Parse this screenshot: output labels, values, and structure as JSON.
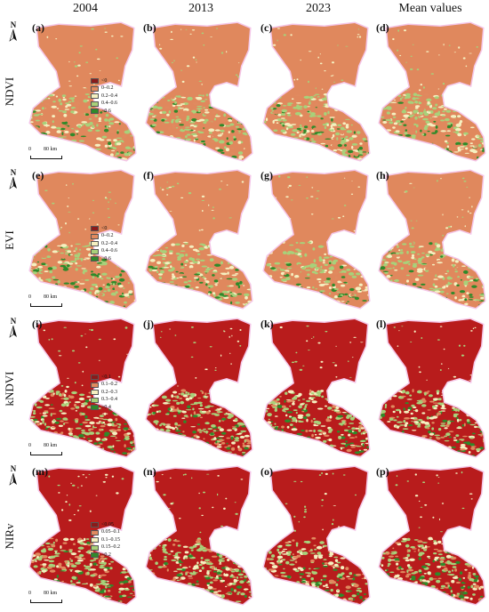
{
  "columns": [
    "2004",
    "2013",
    "2023",
    "Mean values"
  ],
  "north_label": "N",
  "scale": {
    "zero": "0",
    "distance": "80 km"
  },
  "rows": [
    {
      "index": "NDVI",
      "tags": [
        "(a)",
        "(b)",
        "(c)",
        "(d)"
      ],
      "legend": [
        {
          "label": "<0",
          "color": "#8b1a1a"
        },
        {
          "label": "0–0.2",
          "color": "#e08a5f"
        },
        {
          "label": "0.2–0.4",
          "color": "#f5f0c0"
        },
        {
          "label": "0.4–0.6",
          "color": "#a8d17a"
        },
        {
          "label": ">0.6",
          "color": "#2f8a2a"
        }
      ],
      "base_color": "#e0885d"
    },
    {
      "index": "EVI",
      "tags": [
        "(e)",
        "(f)",
        "(g)",
        "(h)"
      ],
      "legend": [
        {
          "label": "<0",
          "color": "#8b1a1a"
        },
        {
          "label": "0–0.2",
          "color": "#e08a5f"
        },
        {
          "label": "0.2–0.4",
          "color": "#f5f0c0"
        },
        {
          "label": "0.4–0.6",
          "color": "#a8d17a"
        },
        {
          "label": ">0.6",
          "color": "#2f8a2a"
        }
      ],
      "base_color": "#e0885d"
    },
    {
      "index": "kNDVI",
      "tags": [
        "(i)",
        "(j)",
        "(k)",
        "(l)"
      ],
      "legend": [
        {
          "label": "<0.1",
          "color": "#8b1a1a"
        },
        {
          "label": "0.1–0.2",
          "color": "#e08a5f"
        },
        {
          "label": "0.2–0.3",
          "color": "#f5f0c0"
        },
        {
          "label": "0.3–0.4",
          "color": "#a8d17a"
        },
        {
          "label": ">0.4",
          "color": "#2f8a2a"
        }
      ],
      "base_color": "#b81c1c"
    },
    {
      "index": "NIRv",
      "tags": [
        "(m)",
        "(n)",
        "(o)",
        "(p)"
      ],
      "legend": [
        {
          "label": "<0.05",
          "color": "#8b1a1a"
        },
        {
          "label": "0.05–0.1",
          "color": "#e08a5f"
        },
        {
          "label": "0.1–0.15",
          "color": "#f5f0c0"
        },
        {
          "label": "0.15–0.2",
          "color": "#a8d17a"
        },
        {
          "label": ">0.2",
          "color": "#2f8a2a"
        }
      ],
      "base_color": "#b81c1c"
    }
  ]
}
